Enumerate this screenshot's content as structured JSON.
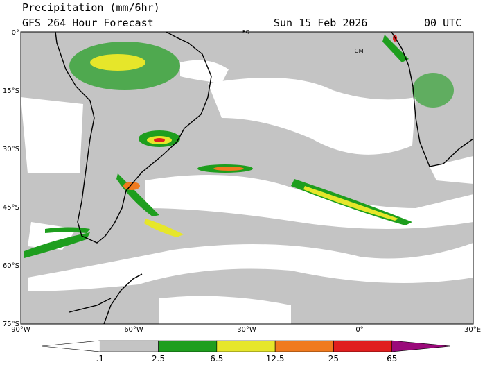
{
  "header": {
    "title": "Precipitation (mm/6hr)",
    "subtitle": "GFS 264 Hour Forecast",
    "date": "Sun 15 Feb 2026",
    "time": "00 UTC"
  },
  "map": {
    "lat_labels": [
      "0°",
      "15°S",
      "30°S",
      "45°S",
      "60°S",
      "75°S"
    ],
    "lon_labels": [
      "90°W",
      "60°W",
      "30°W",
      "0°",
      "30°E"
    ],
    "markers": [
      "EQ",
      "GM"
    ]
  },
  "legend": {
    "labels": [
      ".1",
      "2.5",
      "6.5",
      "12.5",
      "25",
      "65"
    ],
    "colors": [
      "#ffffff",
      "#c4c4c4",
      "#1e9e1e",
      "#e6e62a",
      "#f07a1e",
      "#e01e1e",
      "#9a0a7a"
    ]
  }
}
